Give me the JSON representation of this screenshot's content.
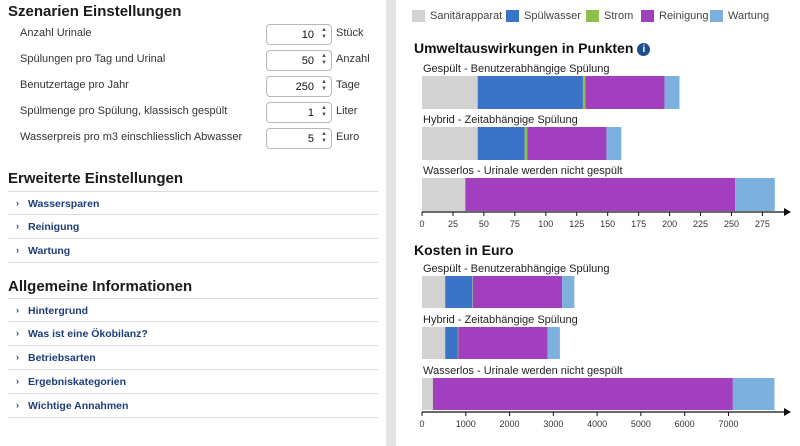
{
  "scenarios": {
    "title": "Szenarien Einstellungen",
    "settings": [
      {
        "label": "Anzahl Urinale",
        "value": "10",
        "unit": "Stück"
      },
      {
        "label": "Spülungen pro Tag und Urinal",
        "value": "50",
        "unit": "Anzahl"
      },
      {
        "label": "Benutzertage pro Jahr",
        "value": "250",
        "unit": "Tage"
      },
      {
        "label": "Spülmenge pro Spülung, klassisch gespült",
        "value": "1",
        "unit": "Liter"
      },
      {
        "label": "Wasserpreis pro m3 einschliesslich Abwasser",
        "value": "5",
        "unit": "Euro"
      }
    ]
  },
  "advanced": {
    "title": "Erweiterte Einstellungen",
    "items": [
      "Wassersparen",
      "Reinigung",
      "Wartung"
    ]
  },
  "general": {
    "title": "Allgemeine Informationen",
    "items": [
      "Hintergrund",
      "Was ist eine Ökobilanz?",
      "Betriebsarten",
      "Ergebniskategorien",
      "Wichtige Annahmen"
    ]
  },
  "legend": [
    {
      "label": "Sanitärapparat",
      "color": "#d2d2d2"
    },
    {
      "label": "Spülwasser",
      "color": "#3a73c7"
    },
    {
      "label": "Strom",
      "color": "#8cc04b"
    },
    {
      "label": "Reinigung",
      "color": "#a13fbe"
    },
    {
      "label": "Wartung",
      "color": "#7db1dd"
    }
  ],
  "info_icon": "info-icon",
  "chart_data": [
    {
      "type": "bar",
      "orientation": "horizontal",
      "stacked": true,
      "title": "Umweltauswirkungen in Punkten",
      "xlim": [
        0,
        290
      ],
      "ticks": [
        0,
        25,
        50,
        75,
        100,
        125,
        150,
        175,
        200,
        225,
        250,
        275
      ],
      "categories": [
        "Gespült - Benutzerabhängige Spülung",
        "Hybrid - Zeitabhängige Spülung",
        "Wasserlos - Urinale werden nicht gespült"
      ],
      "series": [
        {
          "name": "Sanitärapparat",
          "values": [
            45,
            45,
            35
          ]
        },
        {
          "name": "Spülwasser",
          "values": [
            85,
            38,
            0
          ]
        },
        {
          "name": "Strom",
          "values": [
            2,
            2,
            0
          ]
        },
        {
          "name": "Reinigung",
          "values": [
            64,
            64,
            218
          ]
        },
        {
          "name": "Wartung",
          "values": [
            12,
            12,
            32
          ]
        }
      ]
    },
    {
      "type": "bar",
      "orientation": "horizontal",
      "stacked": true,
      "title": "Kosten in Euro",
      "xlim": [
        0,
        8200
      ],
      "ticks": [
        0,
        1000,
        2000,
        3000,
        4000,
        5000,
        6000,
        7000
      ],
      "categories": [
        "Gespült - Benutzerabhängige Spülung",
        "Hybrid - Zeitabhängige Spülung",
        "Wasserlos - Urinale werden nicht gespült"
      ],
      "series": [
        {
          "name": "Sanitärapparat",
          "values": [
            530,
            530,
            250
          ]
        },
        {
          "name": "Spülwasser",
          "values": [
            620,
            290,
            0
          ]
        },
        {
          "name": "Strom",
          "values": [
            10,
            10,
            0
          ]
        },
        {
          "name": "Reinigung",
          "values": [
            2040,
            2040,
            6850
          ]
        },
        {
          "name": "Wartung",
          "values": [
            280,
            280,
            950
          ]
        }
      ]
    }
  ]
}
